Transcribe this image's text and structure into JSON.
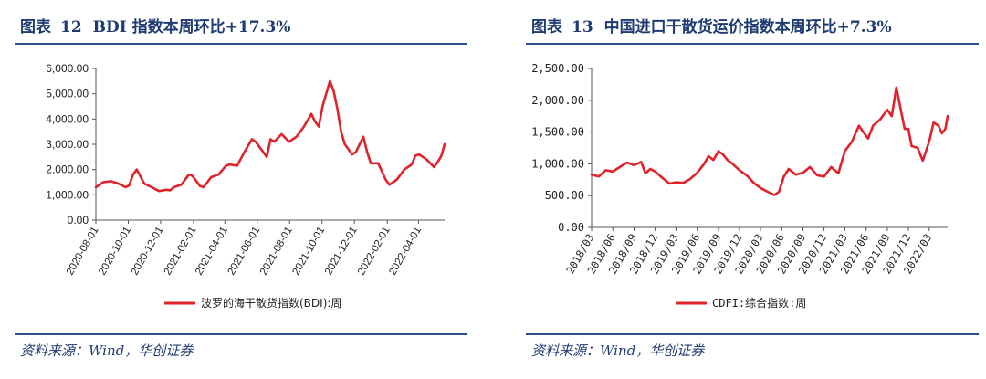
{
  "colors": {
    "line": "#e0222b",
    "title": "#1f3b73",
    "rule": "#2d4f8b"
  },
  "panels": [
    {
      "title_prefix": "图表",
      "title_number": "12",
      "title_text": "BDI 指数本周环比+17.3%",
      "source": "资料来源：Wind，华创证券"
    },
    {
      "title_prefix": "图表",
      "title_number": "13",
      "title_text": "中国进口干散货运价指数本周环比+7.3%",
      "source": "资料来源：Wind，华创证券"
    }
  ],
  "chart_data": [
    {
      "type": "line",
      "title": "BDI 指数本周环比+17.3%",
      "ylim": [
        0,
        6000
      ],
      "y_ticks": [
        "0.00",
        "1,000.00",
        "2,000.00",
        "3,000.00",
        "4,000.00",
        "5,000.00",
        "6,000.00"
      ],
      "y_tick_values": [
        0,
        1000,
        2000,
        3000,
        4000,
        5000,
        6000
      ],
      "x_range": [
        "2020-08-01",
        "2022-05-20"
      ],
      "x_ticks": [
        "2020-08-01",
        "2020-10-01",
        "2020-12-01",
        "2021-02-01",
        "2021-04-01",
        "2021-06-01",
        "2021-08-01",
        "2021-10-01",
        "2021-12-01",
        "2022-02-01",
        "2022-04-01"
      ],
      "legend": "top",
      "grid": false,
      "series": [
        {
          "name": "波罗的海干散货指数(BDI):周",
          "points": [
            [
              "2020-08-01",
              1300
            ],
            [
              "2020-08-15",
              1500
            ],
            [
              "2020-08-29",
              1540
            ],
            [
              "2020-09-12",
              1450
            ],
            [
              "2020-09-26",
              1300
            ],
            [
              "2020-10-03",
              1380
            ],
            [
              "2020-10-10",
              1800
            ],
            [
              "2020-10-17",
              2000
            ],
            [
              "2020-10-31",
              1450
            ],
            [
              "2020-11-14",
              1300
            ],
            [
              "2020-11-28",
              1150
            ],
            [
              "2020-12-12",
              1200
            ],
            [
              "2020-12-19",
              1180
            ],
            [
              "2020-12-26",
              1300
            ],
            [
              "2021-01-09",
              1400
            ],
            [
              "2021-01-23",
              1800
            ],
            [
              "2021-01-30",
              1750
            ],
            [
              "2021-02-13",
              1350
            ],
            [
              "2021-02-20",
              1300
            ],
            [
              "2021-03-06",
              1700
            ],
            [
              "2021-03-20",
              1800
            ],
            [
              "2021-04-03",
              2150
            ],
            [
              "2021-04-10",
              2200
            ],
            [
              "2021-04-24",
              2150
            ],
            [
              "2021-05-08",
              2700
            ],
            [
              "2021-05-22",
              3200
            ],
            [
              "2021-05-29",
              3100
            ],
            [
              "2021-06-12",
              2700
            ],
            [
              "2021-06-19",
              2500
            ],
            [
              "2021-06-26",
              3200
            ],
            [
              "2021-07-03",
              3100
            ],
            [
              "2021-07-17",
              3400
            ],
            [
              "2021-07-31",
              3100
            ],
            [
              "2021-08-14",
              3300
            ],
            [
              "2021-08-28",
              3700
            ],
            [
              "2021-09-11",
              4200
            ],
            [
              "2021-09-18",
              3900
            ],
            [
              "2021-09-25",
              3700
            ],
            [
              "2021-10-02",
              4500
            ],
            [
              "2021-10-09",
              5000
            ],
            [
              "2021-10-16",
              5500
            ],
            [
              "2021-10-23",
              5100
            ],
            [
              "2021-10-30",
              4400
            ],
            [
              "2021-11-06",
              3500
            ],
            [
              "2021-11-13",
              3000
            ],
            [
              "2021-11-27",
              2600
            ],
            [
              "2021-12-04",
              2700
            ],
            [
              "2021-12-18",
              3300
            ],
            [
              "2021-12-25",
              2700
            ],
            [
              "2022-01-01",
              2250
            ],
            [
              "2022-01-15",
              2250
            ],
            [
              "2022-01-29",
              1600
            ],
            [
              "2022-02-05",
              1400
            ],
            [
              "2022-02-19",
              1600
            ],
            [
              "2022-03-05",
              2000
            ],
            [
              "2022-03-19",
              2200
            ],
            [
              "2022-03-26",
              2550
            ],
            [
              "2022-04-02",
              2600
            ],
            [
              "2022-04-16",
              2400
            ],
            [
              "2022-04-30",
              2100
            ],
            [
              "2022-05-07",
              2300
            ],
            [
              "2022-05-14",
              2550
            ],
            [
              "2022-05-20",
              3000
            ]
          ]
        }
      ]
    },
    {
      "type": "line",
      "title": "中国进口干散货运价指数本周环比+7.3%",
      "ylim": [
        0,
        2500
      ],
      "y_ticks": [
        "0.00",
        "500.00",
        "1,000.00",
        "1,500.00",
        "2,000.00",
        "2,500.00"
      ],
      "y_tick_values": [
        0,
        500,
        1000,
        1500,
        2000,
        2500
      ],
      "x_range": [
        "2018-03-01",
        "2022-05-20"
      ],
      "x_ticks": [
        "2018/03",
        "2018/06",
        "2018/09",
        "2018/12",
        "2019/03",
        "2019/06",
        "2019/09",
        "2019/12",
        "2020/03",
        "2020/06",
        "2020/09",
        "2020/12",
        "2021/03",
        "2021/06",
        "2021/09",
        "2021/12",
        "2022/03"
      ],
      "x_tick_dates": [
        "2018-03-01",
        "2018-06-01",
        "2018-09-01",
        "2018-12-01",
        "2019-03-01",
        "2019-06-01",
        "2019-09-01",
        "2019-12-01",
        "2020-03-01",
        "2020-06-01",
        "2020-09-01",
        "2020-12-01",
        "2021-03-01",
        "2021-06-01",
        "2021-09-01",
        "2021-12-01",
        "2022-03-01"
      ],
      "legend": "top",
      "grid": false,
      "series": [
        {
          "name": "CDFI:综合指数:周",
          "points": [
            [
              "2018-03-01",
              830
            ],
            [
              "2018-04-01",
              800
            ],
            [
              "2018-05-01",
              900
            ],
            [
              "2018-06-01",
              880
            ],
            [
              "2018-07-01",
              950
            ],
            [
              "2018-08-01",
              1020
            ],
            [
              "2018-09-01",
              980
            ],
            [
              "2018-10-01",
              1030
            ],
            [
              "2018-10-20",
              850
            ],
            [
              "2018-11-10",
              920
            ],
            [
              "2018-12-01",
              880
            ],
            [
              "2019-01-01",
              780
            ],
            [
              "2019-02-01",
              690
            ],
            [
              "2019-03-01",
              710
            ],
            [
              "2019-04-01",
              700
            ],
            [
              "2019-05-01",
              760
            ],
            [
              "2019-06-01",
              860
            ],
            [
              "2019-07-01",
              1000
            ],
            [
              "2019-07-20",
              1120
            ],
            [
              "2019-08-10",
              1060
            ],
            [
              "2019-09-01",
              1200
            ],
            [
              "2019-09-20",
              1150
            ],
            [
              "2019-10-10",
              1060
            ],
            [
              "2019-11-01",
              1000
            ],
            [
              "2019-12-01",
              900
            ],
            [
              "2020-01-01",
              820
            ],
            [
              "2020-02-01",
              700
            ],
            [
              "2020-03-01",
              620
            ],
            [
              "2020-04-01",
              560
            ],
            [
              "2020-05-01",
              510
            ],
            [
              "2020-05-20",
              560
            ],
            [
              "2020-06-10",
              800
            ],
            [
              "2020-07-01",
              920
            ],
            [
              "2020-08-01",
              830
            ],
            [
              "2020-09-01",
              860
            ],
            [
              "2020-10-01",
              950
            ],
            [
              "2020-11-01",
              820
            ],
            [
              "2020-12-01",
              800
            ],
            [
              "2021-01-01",
              950
            ],
            [
              "2021-02-01",
              850
            ],
            [
              "2021-03-01",
              1200
            ],
            [
              "2021-04-01",
              1350
            ],
            [
              "2021-05-01",
              1600
            ],
            [
              "2021-05-20",
              1500
            ],
            [
              "2021-06-10",
              1400
            ],
            [
              "2021-07-01",
              1600
            ],
            [
              "2021-08-01",
              1700
            ],
            [
              "2021-09-01",
              1850
            ],
            [
              "2021-09-20",
              1750
            ],
            [
              "2021-10-10",
              2200
            ],
            [
              "2021-11-01",
              1800
            ],
            [
              "2021-11-15",
              1550
            ],
            [
              "2021-12-01",
              1550
            ],
            [
              "2021-12-15",
              1280
            ],
            [
              "2022-01-10",
              1250
            ],
            [
              "2022-02-01",
              1050
            ],
            [
              "2022-03-01",
              1350
            ],
            [
              "2022-03-20",
              1650
            ],
            [
              "2022-04-10",
              1600
            ],
            [
              "2022-04-25",
              1480
            ],
            [
              "2022-05-10",
              1550
            ],
            [
              "2022-05-20",
              1750
            ]
          ]
        }
      ]
    }
  ]
}
